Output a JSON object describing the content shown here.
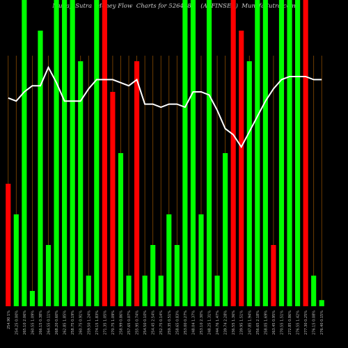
{
  "title": {
    "left": "MunafaSutra  Money Flow  Charts for 526488",
    "right": "(AVFINSER)  MunafaSutra.com"
  },
  "chart_data": {
    "type": "bar",
    "ylim": [
      0,
      100
    ],
    "up_color": "#00ff00",
    "down_color": "#ff0000",
    "line_color": "#ffffff",
    "grid_color": "#8a4b00",
    "categories": [
      "254.90 1%",
      "254.25 0.00%",
      "265.10 2.06%",
      "260.55 1.09%",
      "266.15 0.38%",
      "264.55 0.11%",
      "268.20 0.60%",
      "262.85 1.85%",
      "258.75 0.19%",
      "260.75 0.91%",
      "259.50 1.24%",
      "274.15 1.83%",
      "271.35 1.05%",
      "270.75 1.09%",
      "258.99 0.86%",
      "257.65 0.07%",
      "255.95 0.74%",
      "254.50 0.10%",
      "254.45 2.54%",
      "252.75 0.14%",
      "259.35 0.51%",
      "258.65 0.83%",
      "253.00 0.27%",
      "248.04 1.37%",
      "253.10 2.30%",
      "248.25 1.31%",
      "244.76 1.47%",
      "239.74 2.28%",
      "236.55 1.36%",
      "239.95 1.51%",
      "247.85 1.94%",
      "256.65 2.18%",
      "258.05 1.69%",
      "263.45 0.95%",
      "270.55 1.51%",
      "272.85 0.86%",
      "276.55 1.42%",
      "277.30 0.25%",
      "276.15 0.08%",
      "276.40 0.15%"
    ],
    "bars": [
      {
        "v": 40,
        "c": "down"
      },
      {
        "v": 30,
        "c": "up"
      },
      {
        "v": 100,
        "c": "up"
      },
      {
        "v": 5,
        "c": "up"
      },
      {
        "v": 90,
        "c": "up"
      },
      {
        "v": 20,
        "c": "up"
      },
      {
        "v": 100,
        "c": "up"
      },
      {
        "v": 100,
        "c": "up"
      },
      {
        "v": 100,
        "c": "up"
      },
      {
        "v": 80,
        "c": "up"
      },
      {
        "v": 10,
        "c": "up"
      },
      {
        "v": 100,
        "c": "up"
      },
      {
        "v": 100,
        "c": "down"
      },
      {
        "v": 70,
        "c": "down"
      },
      {
        "v": 50,
        "c": "up"
      },
      {
        "v": 10,
        "c": "up"
      },
      {
        "v": 80,
        "c": "down"
      },
      {
        "v": 10,
        "c": "up"
      },
      {
        "v": 20,
        "c": "up"
      },
      {
        "v": 10,
        "c": "up"
      },
      {
        "v": 30,
        "c": "up"
      },
      {
        "v": 20,
        "c": "up"
      },
      {
        "v": 100,
        "c": "up"
      },
      {
        "v": 100,
        "c": "up"
      },
      {
        "v": 30,
        "c": "up"
      },
      {
        "v": 100,
        "c": "up"
      },
      {
        "v": 10,
        "c": "up"
      },
      {
        "v": 50,
        "c": "up"
      },
      {
        "v": 100,
        "c": "down"
      },
      {
        "v": 90,
        "c": "down"
      },
      {
        "v": 80,
        "c": "up"
      },
      {
        "v": 100,
        "c": "up"
      },
      {
        "v": 100,
        "c": "up"
      },
      {
        "v": 20,
        "c": "down"
      },
      {
        "v": 100,
        "c": "up"
      },
      {
        "v": 100,
        "c": "up"
      },
      {
        "v": 100,
        "c": "up"
      },
      {
        "v": 100,
        "c": "down"
      },
      {
        "v": 10,
        "c": "up"
      },
      {
        "v": 2,
        "c": "up"
      }
    ],
    "line": [
      68,
      67,
      70,
      72,
      72,
      78,
      73,
      67,
      67,
      67,
      71,
      74,
      74,
      74,
      73,
      72,
      74,
      66,
      66,
      65,
      66,
      66,
      65,
      70,
      70,
      69,
      64,
      58,
      56,
      52,
      57,
      62,
      67,
      71,
      74,
      75,
      75,
      75,
      74,
      74
    ]
  }
}
